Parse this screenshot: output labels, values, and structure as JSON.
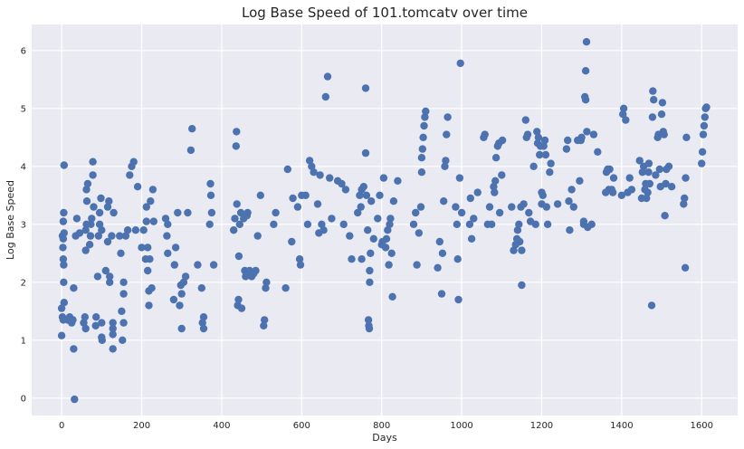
{
  "chart_data": {
    "type": "scatter",
    "title": "Log Base Speed of 101.tomcatv over time",
    "xlabel": "Days",
    "ylabel": "Log Base Speed",
    "xlim": [
      -75,
      1690
    ],
    "ylim": [
      -0.3,
      6.45
    ],
    "xticks": [
      0,
      200,
      400,
      600,
      800,
      1000,
      1200,
      1400,
      1600
    ],
    "yticks": [
      0,
      1,
      2,
      3,
      4,
      5,
      6
    ],
    "grid": true,
    "legend": "none",
    "colors": {
      "background": "#eaeaf2",
      "grid": "#ffffff",
      "marker": "#4c72b0"
    },
    "points": [
      [
        0,
        1.08
      ],
      [
        0,
        1.55
      ],
      [
        2,
        1.4
      ],
      [
        4,
        1.35
      ],
      [
        5,
        2.0
      ],
      [
        6,
        1.65
      ],
      [
        5,
        2.3
      ],
      [
        4,
        2.4
      ],
      [
        3,
        2.6
      ],
      [
        4,
        2.75
      ],
      [
        2,
        2.8
      ],
      [
        6,
        2.85
      ],
      [
        4,
        3.05
      ],
      [
        5,
        3.2
      ],
      [
        6,
        4.02
      ],
      [
        15,
        1.35
      ],
      [
        20,
        1.4
      ],
      [
        25,
        1.3
      ],
      [
        28,
        1.35
      ],
      [
        30,
        0.85
      ],
      [
        30,
        1.9
      ],
      [
        32,
        -0.02
      ],
      [
        35,
        2.8
      ],
      [
        38,
        3.1
      ],
      [
        45,
        2.85
      ],
      [
        55,
        1.3
      ],
      [
        60,
        1.2
      ],
      [
        58,
        1.4
      ],
      [
        60,
        2.55
      ],
      [
        60,
        2.9
      ],
      [
        62,
        3.0
      ],
      [
        63,
        3.4
      ],
      [
        62,
        3.6
      ],
      [
        65,
        3.7
      ],
      [
        70,
        2.65
      ],
      [
        72,
        2.8
      ],
      [
        73,
        3.0
      ],
      [
        75,
        3.1
      ],
      [
        78,
        3.85
      ],
      [
        78,
        4.08
      ],
      [
        80,
        3.3
      ],
      [
        85,
        1.25
      ],
      [
        86,
        1.4
      ],
      [
        90,
        2.1
      ],
      [
        92,
        2.8
      ],
      [
        95,
        3.0
      ],
      [
        95,
        3.2
      ],
      [
        98,
        3.45
      ],
      [
        100,
        2.9
      ],
      [
        100,
        1.05
      ],
      [
        101,
        1.0
      ],
      [
        100,
        1.3
      ],
      [
        110,
        2.2
      ],
      [
        115,
        2.7
      ],
      [
        115,
        3.3
      ],
      [
        118,
        3.4
      ],
      [
        120,
        2.0
      ],
      [
        120,
        2.1
      ],
      [
        125,
        2.8
      ],
      [
        128,
        1.2
      ],
      [
        128,
        1.3
      ],
      [
        128,
        1.1
      ],
      [
        128,
        0.85
      ],
      [
        130,
        3.2
      ],
      [
        145,
        2.8
      ],
      [
        148,
        2.5
      ],
      [
        150,
        1.5
      ],
      [
        152,
        1.0
      ],
      [
        155,
        1.3
      ],
      [
        155,
        1.8
      ],
      [
        155,
        2.0
      ],
      [
        160,
        2.8
      ],
      [
        165,
        2.9
      ],
      [
        170,
        3.85
      ],
      [
        175,
        4.0
      ],
      [
        180,
        4.08
      ],
      [
        185,
        2.9
      ],
      [
        190,
        3.65
      ],
      [
        200,
        2.6
      ],
      [
        205,
        2.9
      ],
      [
        210,
        2.4
      ],
      [
        212,
        3.05
      ],
      [
        212,
        3.3
      ],
      [
        215,
        2.2
      ],
      [
        215,
        2.6
      ],
      [
        218,
        1.6
      ],
      [
        218,
        1.85
      ],
      [
        220,
        2.4
      ],
      [
        222,
        3.4
      ],
      [
        225,
        1.9
      ],
      [
        228,
        3.6
      ],
      [
        230,
        3.05
      ],
      [
        260,
        3.1
      ],
      [
        263,
        2.8
      ],
      [
        265,
        2.5
      ],
      [
        265,
        3.0
      ],
      [
        280,
        1.7
      ],
      [
        282,
        2.3
      ],
      [
        285,
        2.6
      ],
      [
        290,
        3.2
      ],
      [
        295,
        1.6
      ],
      [
        298,
        1.95
      ],
      [
        300,
        1.2
      ],
      [
        300,
        1.8
      ],
      [
        305,
        2.0
      ],
      [
        310,
        2.1
      ],
      [
        315,
        3.2
      ],
      [
        323,
        4.28
      ],
      [
        326,
        4.65
      ],
      [
        340,
        2.3
      ],
      [
        350,
        1.9
      ],
      [
        352,
        1.3
      ],
      [
        355,
        1.4
      ],
      [
        355,
        1.2
      ],
      [
        370,
        3.0
      ],
      [
        372,
        3.7
      ],
      [
        373,
        3.5
      ],
      [
        375,
        3.2
      ],
      [
        380,
        2.3
      ],
      [
        430,
        2.9
      ],
      [
        433,
        3.1
      ],
      [
        436,
        4.35
      ],
      [
        437,
        4.6
      ],
      [
        438,
        3.35
      ],
      [
        440,
        1.6
      ],
      [
        442,
        1.7
      ],
      [
        443,
        2.45
      ],
      [
        445,
        3.0
      ],
      [
        448,
        3.2
      ],
      [
        450,
        1.55
      ],
      [
        455,
        3.1
      ],
      [
        458,
        2.2
      ],
      [
        460,
        2.1
      ],
      [
        463,
        3.15
      ],
      [
        465,
        3.2
      ],
      [
        470,
        2.2
      ],
      [
        475,
        2.1
      ],
      [
        480,
        2.15
      ],
      [
        485,
        2.2
      ],
      [
        490,
        2.8
      ],
      [
        497,
        3.5
      ],
      [
        505,
        1.25
      ],
      [
        507,
        1.35
      ],
      [
        510,
        1.9
      ],
      [
        512,
        2.0
      ],
      [
        530,
        3.0
      ],
      [
        535,
        3.2
      ],
      [
        560,
        1.9
      ],
      [
        565,
        3.95
      ],
      [
        575,
        2.7
      ],
      [
        578,
        3.45
      ],
      [
        590,
        3.3
      ],
      [
        595,
        2.4
      ],
      [
        597,
        2.3
      ],
      [
        600,
        3.5
      ],
      [
        610,
        3.5
      ],
      [
        615,
        3.0
      ],
      [
        620,
        4.1
      ],
      [
        625,
        4.0
      ],
      [
        630,
        3.9
      ],
      [
        640,
        3.35
      ],
      [
        643,
        2.85
      ],
      [
        646,
        3.85
      ],
      [
        650,
        3.0
      ],
      [
        655,
        2.9
      ],
      [
        660,
        5.2
      ],
      [
        665,
        5.55
      ],
      [
        670,
        3.8
      ],
      [
        675,
        3.1
      ],
      [
        690,
        3.75
      ],
      [
        700,
        3.7
      ],
      [
        705,
        3.0
      ],
      [
        710,
        3.6
      ],
      [
        720,
        2.8
      ],
      [
        725,
        2.4
      ],
      [
        740,
        3.2
      ],
      [
        745,
        3.5
      ],
      [
        748,
        3.3
      ],
      [
        750,
        2.4
      ],
      [
        750,
        3.6
      ],
      [
        755,
        3.65
      ],
      [
        760,
        4.23
      ],
      [
        760,
        5.35
      ],
      [
        762,
        3.5
      ],
      [
        765,
        2.9
      ],
      [
        767,
        1.35
      ],
      [
        768,
        1.25
      ],
      [
        769,
        1.2
      ],
      [
        770,
        2.2
      ],
      [
        770,
        2.0
      ],
      [
        772,
        2.5
      ],
      [
        774,
        3.4
      ],
      [
        780,
        2.75
      ],
      [
        790,
        3.1
      ],
      [
        795,
        3.5
      ],
      [
        800,
        2.65
      ],
      [
        802,
        2.7
      ],
      [
        805,
        3.8
      ],
      [
        810,
        2.6
      ],
      [
        812,
        2.75
      ],
      [
        815,
        2.9
      ],
      [
        818,
        2.3
      ],
      [
        820,
        3.0
      ],
      [
        822,
        3.1
      ],
      [
        825,
        2.5
      ],
      [
        827,
        1.75
      ],
      [
        830,
        3.4
      ],
      [
        840,
        3.75
      ],
      [
        880,
        3.0
      ],
      [
        885,
        3.2
      ],
      [
        888,
        2.3
      ],
      [
        893,
        2.85
      ],
      [
        898,
        3.3
      ],
      [
        900,
        3.9
      ],
      [
        900,
        4.15
      ],
      [
        902,
        4.3
      ],
      [
        904,
        4.5
      ],
      [
        906,
        4.7
      ],
      [
        908,
        4.85
      ],
      [
        910,
        4.95
      ],
      [
        940,
        2.25
      ],
      [
        945,
        2.7
      ],
      [
        950,
        1.8
      ],
      [
        952,
        2.5
      ],
      [
        955,
        3.4
      ],
      [
        958,
        4.0
      ],
      [
        960,
        4.1
      ],
      [
        962,
        4.55
      ],
      [
        965,
        4.85
      ],
      [
        985,
        3.3
      ],
      [
        988,
        3.0
      ],
      [
        990,
        2.4
      ],
      [
        992,
        1.7
      ],
      [
        995,
        3.8
      ],
      [
        997,
        5.78
      ],
      [
        1000,
        3.2
      ],
      [
        1020,
        3.0
      ],
      [
        1022,
        3.45
      ],
      [
        1025,
        2.75
      ],
      [
        1030,
        3.1
      ],
      [
        1040,
        3.55
      ],
      [
        1055,
        4.5
      ],
      [
        1058,
        4.55
      ],
      [
        1065,
        3.0
      ],
      [
        1070,
        3.3
      ],
      [
        1075,
        3.0
      ],
      [
        1080,
        3.65
      ],
      [
        1082,
        3.55
      ],
      [
        1084,
        3.75
      ],
      [
        1086,
        4.15
      ],
      [
        1090,
        4.35
      ],
      [
        1093,
        4.4
      ],
      [
        1095,
        3.2
      ],
      [
        1100,
        3.85
      ],
      [
        1102,
        4.45
      ],
      [
        1125,
        3.3
      ],
      [
        1130,
        2.55
      ],
      [
        1135,
        2.65
      ],
      [
        1138,
        2.75
      ],
      [
        1140,
        2.9
      ],
      [
        1143,
        3.0
      ],
      [
        1145,
        2.7
      ],
      [
        1148,
        3.3
      ],
      [
        1150,
        1.95
      ],
      [
        1150,
        2.55
      ],
      [
        1155,
        3.35
      ],
      [
        1160,
        4.8
      ],
      [
        1162,
        4.5
      ],
      [
        1165,
        4.55
      ],
      [
        1168,
        3.2
      ],
      [
        1172,
        3.05
      ],
      [
        1180,
        4.0
      ],
      [
        1185,
        3.0
      ],
      [
        1188,
        4.6
      ],
      [
        1190,
        4.4
      ],
      [
        1192,
        4.5
      ],
      [
        1195,
        4.2
      ],
      [
        1197,
        4.35
      ],
      [
        1200,
        3.55
      ],
      [
        1200,
        3.35
      ],
      [
        1203,
        3.5
      ],
      [
        1205,
        4.35
      ],
      [
        1208,
        4.45
      ],
      [
        1210,
        4.2
      ],
      [
        1212,
        3.3
      ],
      [
        1215,
        3.0
      ],
      [
        1220,
        3.9
      ],
      [
        1223,
        4.05
      ],
      [
        1240,
        3.35
      ],
      [
        1262,
        4.3
      ],
      [
        1265,
        4.45
      ],
      [
        1268,
        3.4
      ],
      [
        1270,
        2.9
      ],
      [
        1275,
        3.6
      ],
      [
        1280,
        3.3
      ],
      [
        1290,
        4.45
      ],
      [
        1295,
        3.75
      ],
      [
        1298,
        4.45
      ],
      [
        1300,
        4.5
      ],
      [
        1305,
        3.0
      ],
      [
        1305,
        3.05
      ],
      [
        1308,
        5.2
      ],
      [
        1310,
        5.15
      ],
      [
        1310,
        5.65
      ],
      [
        1312,
        6.15
      ],
      [
        1313,
        4.6
      ],
      [
        1315,
        2.95
      ],
      [
        1325,
        3.0
      ],
      [
        1330,
        4.55
      ],
      [
        1340,
        4.25
      ],
      [
        1360,
        3.55
      ],
      [
        1362,
        3.9
      ],
      [
        1365,
        3.95
      ],
      [
        1368,
        3.6
      ],
      [
        1370,
        3.95
      ],
      [
        1375,
        3.6
      ],
      [
        1378,
        3.55
      ],
      [
        1380,
        3.8
      ],
      [
        1400,
        3.5
      ],
      [
        1403,
        4.9
      ],
      [
        1405,
        5.0
      ],
      [
        1410,
        4.8
      ],
      [
        1415,
        3.55
      ],
      [
        1420,
        3.8
      ],
      [
        1425,
        3.6
      ],
      [
        1445,
        4.1
      ],
      [
        1450,
        3.45
      ],
      [
        1452,
        3.9
      ],
      [
        1455,
        4.0
      ],
      [
        1458,
        3.6
      ],
      [
        1460,
        3.7
      ],
      [
        1462,
        3.45
      ],
      [
        1465,
        3.55
      ],
      [
        1467,
        3.9
      ],
      [
        1468,
        4.05
      ],
      [
        1470,
        3.7
      ],
      [
        1475,
        1.6
      ],
      [
        1477,
        4.85
      ],
      [
        1478,
        5.3
      ],
      [
        1480,
        5.15
      ],
      [
        1485,
        3.85
      ],
      [
        1490,
        4.5
      ],
      [
        1492,
        4.55
      ],
      [
        1495,
        3.95
      ],
      [
        1497,
        3.65
      ],
      [
        1500,
        4.9
      ],
      [
        1502,
        5.1
      ],
      [
        1504,
        4.6
      ],
      [
        1506,
        4.55
      ],
      [
        1508,
        3.15
      ],
      [
        1510,
        3.7
      ],
      [
        1512,
        3.95
      ],
      [
        1518,
        4.0
      ],
      [
        1525,
        3.65
      ],
      [
        1555,
        3.35
      ],
      [
        1557,
        3.45
      ],
      [
        1559,
        2.25
      ],
      [
        1560,
        3.8
      ],
      [
        1562,
        4.5
      ],
      [
        1600,
        4.05
      ],
      [
        1602,
        4.25
      ],
      [
        1604,
        4.55
      ],
      [
        1606,
        4.7
      ],
      [
        1608,
        4.85
      ],
      [
        1610,
        5.0
      ],
      [
        1612,
        5.02
      ]
    ]
  }
}
